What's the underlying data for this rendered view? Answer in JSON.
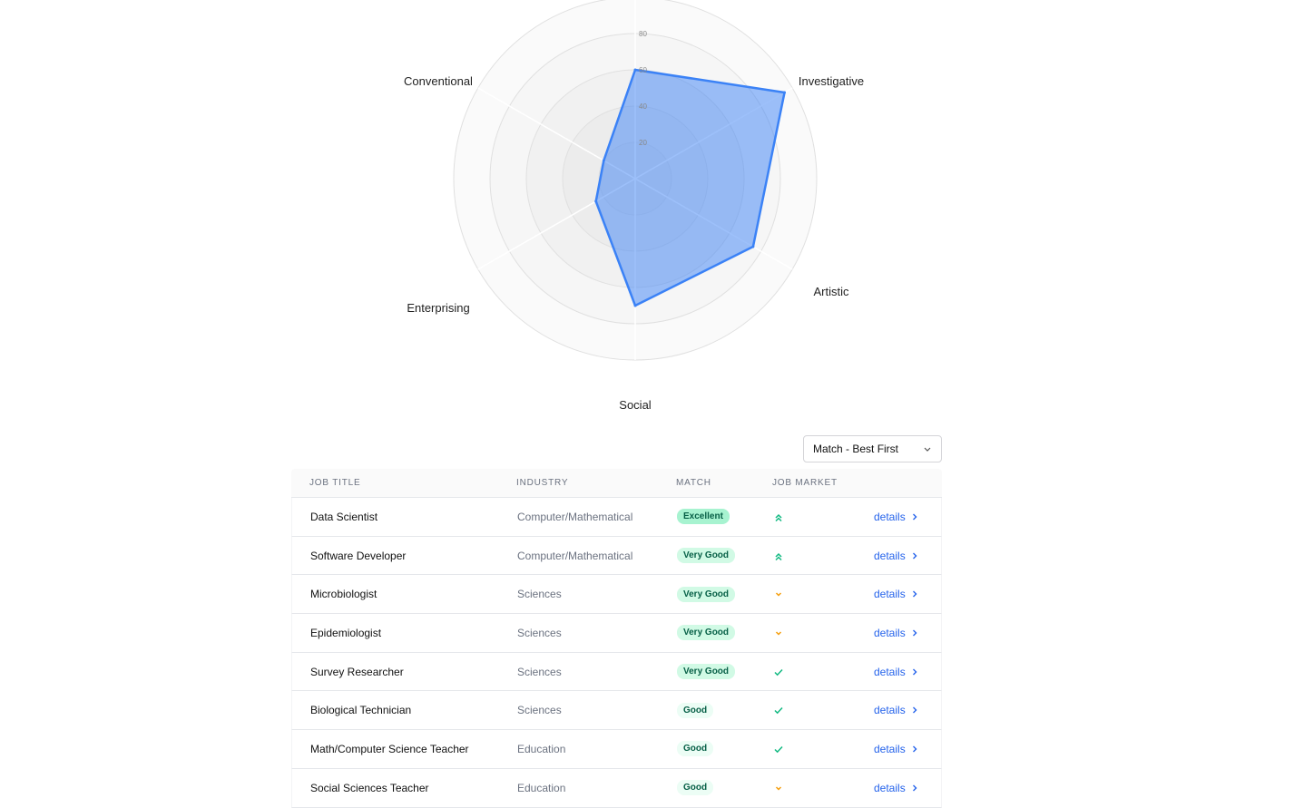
{
  "chart_data": {
    "type": "radar",
    "categories": [
      "",
      "Investigative",
      "Artistic",
      "Social",
      "Enterprising",
      "Conventional"
    ],
    "values": [
      60,
      95,
      75,
      70,
      25,
      20
    ],
    "rlim": [
      0,
      100
    ],
    "ticks": [
      20,
      40,
      60,
      80
    ],
    "colors": {
      "fill": "#3b82f6",
      "stroke": "#3b82f6"
    }
  },
  "sort": {
    "label": "Match - Best First",
    "icon": "chevron-down-icon"
  },
  "table": {
    "headers": [
      "JOB TITLE",
      "INDUSTRY",
      "MATCH",
      "JOB MARKET",
      ""
    ],
    "rows": [
      {
        "title": "Data Scientist",
        "industry": "Computer/Mathematical",
        "match": "Excellent",
        "market": "double-chevron-up-icon",
        "link": "details"
      },
      {
        "title": "Software Developer",
        "industry": "Computer/Mathematical",
        "match": "Very Good",
        "market": "double-chevron-up-icon",
        "link": "details"
      },
      {
        "title": "Microbiologist",
        "industry": "Sciences",
        "match": "Very Good",
        "market": "chevron-down-icon",
        "link": "details"
      },
      {
        "title": "Epidemiologist",
        "industry": "Sciences",
        "match": "Very Good",
        "market": "chevron-down-icon",
        "link": "details"
      },
      {
        "title": "Survey Researcher",
        "industry": "Sciences",
        "match": "Very Good",
        "market": "check-icon",
        "link": "details"
      },
      {
        "title": "Biological Technician",
        "industry": "Sciences",
        "match": "Good",
        "market": "check-icon",
        "link": "details"
      },
      {
        "title": "Math/Computer Science Teacher",
        "industry": "Education",
        "match": "Good",
        "market": "check-icon",
        "link": "details"
      },
      {
        "title": "Social Sciences Teacher",
        "industry": "Education",
        "match": "Good",
        "market": "chevron-down-icon",
        "link": "details"
      }
    ]
  }
}
